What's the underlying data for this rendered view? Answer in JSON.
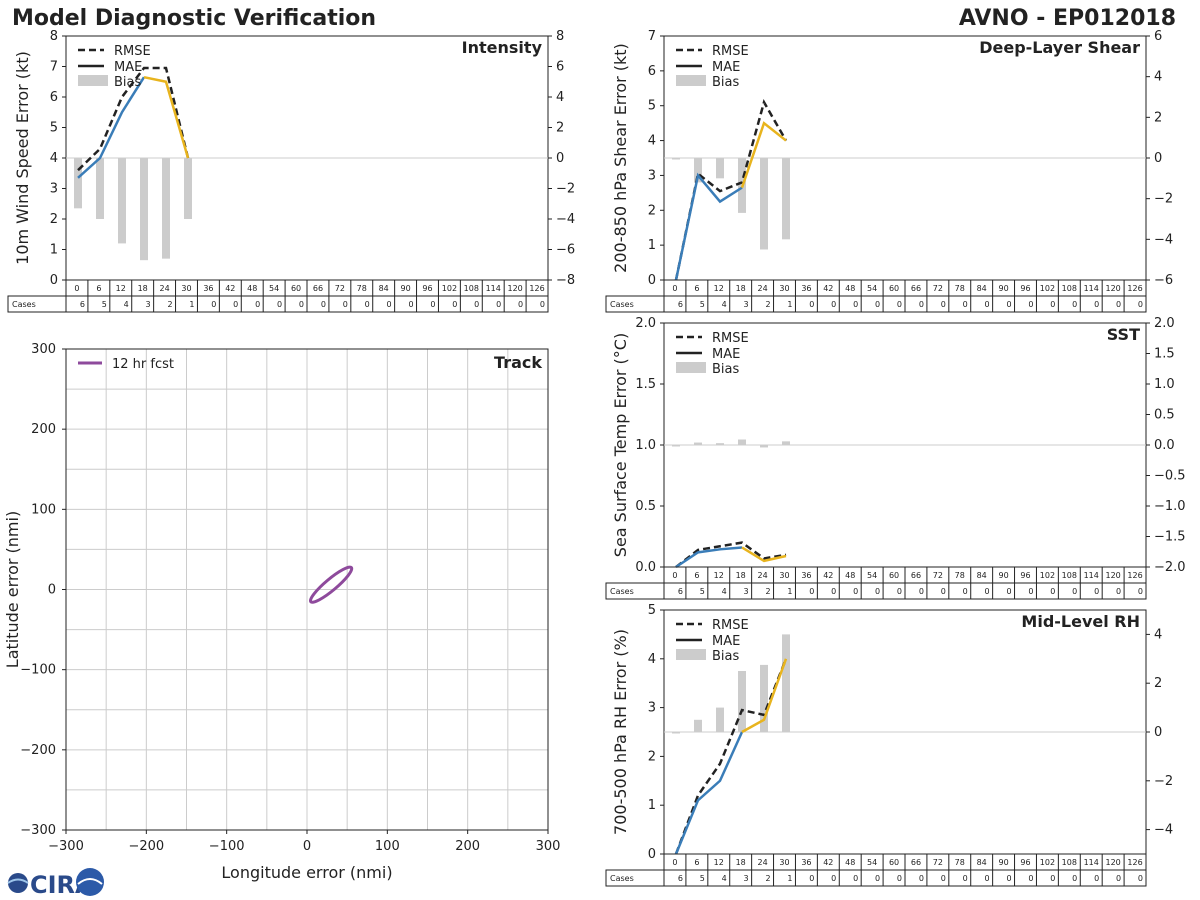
{
  "header": {
    "title": "Model Diagnostic Verification",
    "storm_id": "AVNO - EP012018"
  },
  "colors": {
    "mae_early": "#3a7db8",
    "mae_late": "#e8b41e",
    "rmse": "#222222",
    "bias": "#cccccc",
    "track": "#8e4a9c",
    "grid": "#cccccc"
  },
  "lead_times": [
    "0",
    "6",
    "12",
    "18",
    "24",
    "30",
    "36",
    "42",
    "48",
    "54",
    "60",
    "66",
    "72",
    "78",
    "84",
    "90",
    "96",
    "102",
    "108",
    "114",
    "120",
    "126"
  ],
  "cases_label": "Cases",
  "cases": [
    "6",
    "5",
    "4",
    "3",
    "2",
    "1",
    "0",
    "0",
    "0",
    "0",
    "0",
    "0",
    "0",
    "0",
    "0",
    "0",
    "0",
    "0",
    "0",
    "0",
    "0",
    "0"
  ],
  "legend": {
    "rmse": "RMSE",
    "mae": "MAE",
    "bias": "Bias"
  },
  "chart_data": [
    {
      "id": "intensity",
      "type": "line",
      "title": "Intensity",
      "ylabel": "10m Wind Speed Error (kt)",
      "ylim": [
        0,
        8
      ],
      "yticks": [
        "0",
        "1",
        "2",
        "3",
        "4",
        "5",
        "6",
        "7",
        "8"
      ],
      "y2lim": [
        -8,
        8
      ],
      "y2ticks": [
        "−8",
        "−6",
        "−4",
        "−2",
        "0",
        "2",
        "4",
        "6",
        "8"
      ],
      "x": [
        0,
        6,
        12,
        18,
        24,
        30
      ],
      "mae": [
        3.35,
        4.0,
        5.5,
        6.65,
        6.5,
        4.0
      ],
      "rmse": [
        3.6,
        4.3,
        6.0,
        6.95,
        6.95,
        4.0
      ],
      "bias": [
        -3.3,
        -4.0,
        -5.6,
        -6.7,
        -6.6,
        -4.0
      ]
    },
    {
      "id": "shear",
      "type": "line",
      "title": "Deep-Layer Shear",
      "ylabel": "200-850 hPa Shear Error (kt)",
      "ylim": [
        0,
        7
      ],
      "yticks": [
        "0",
        "1",
        "2",
        "3",
        "4",
        "5",
        "6",
        "7"
      ],
      "y2lim": [
        -6,
        6
      ],
      "y2ticks": [
        "−6",
        "−4",
        "−2",
        "0",
        "2",
        "4",
        "6"
      ],
      "x": [
        0,
        6,
        12,
        18,
        24,
        30
      ],
      "mae": [
        0.0,
        3.0,
        2.25,
        2.65,
        4.5,
        4.0
      ],
      "rmse": [
        0.0,
        3.05,
        2.55,
        2.8,
        5.1,
        4.0
      ],
      "bias": [
        0.0,
        -1.2,
        -1.0,
        -2.7,
        -4.5,
        -4.0
      ]
    },
    {
      "id": "sst",
      "type": "line",
      "title": "SST",
      "ylabel": "Sea Surface Temp Error (°C)",
      "ylim": [
        0,
        2.0
      ],
      "yticks": [
        "0.0",
        "0.5",
        "1.0",
        "1.5",
        "2.0"
      ],
      "y2lim": [
        -2.0,
        2.0
      ],
      "y2ticks": [
        "−2.0",
        "−1.5",
        "−1.0",
        "−0.5",
        "0.0",
        "0.5",
        "1.0",
        "1.5",
        "2.0"
      ],
      "x": [
        0,
        6,
        12,
        18,
        24,
        30
      ],
      "mae": [
        0.0,
        0.12,
        0.145,
        0.16,
        0.05,
        0.09
      ],
      "rmse": [
        0.0,
        0.14,
        0.17,
        0.2,
        0.07,
        0.1
      ],
      "bias": [
        0.0,
        0.04,
        0.03,
        0.09,
        -0.04,
        0.06
      ]
    },
    {
      "id": "rh",
      "type": "line",
      "title": "Mid-Level RH",
      "ylabel": "700-500 hPa RH Error (%)",
      "ylim": [
        0,
        5
      ],
      "yticks": [
        "0",
        "1",
        "2",
        "3",
        "4",
        "5"
      ],
      "y2lim": [
        -5,
        5
      ],
      "y2ticks": [
        "−4",
        "−2",
        "0",
        "2",
        "4"
      ],
      "y2tickvals": [
        -4,
        -2,
        0,
        2,
        4
      ],
      "x": [
        0,
        6,
        12,
        18,
        24,
        30
      ],
      "mae": [
        0.0,
        1.1,
        1.5,
        2.5,
        2.75,
        4.0
      ],
      "rmse": [
        0.0,
        1.2,
        1.85,
        2.95,
        2.85,
        4.0
      ],
      "bias": [
        0.0,
        0.5,
        1.0,
        2.5,
        2.75,
        4.0
      ]
    },
    {
      "id": "track",
      "type": "scatter",
      "title": "Track",
      "xlabel": "Longitude error (nmi)",
      "ylabel": "Latitude error (nmi)",
      "xlim": [
        -300,
        300
      ],
      "ylim": [
        -300,
        300
      ],
      "xticks": [
        "−300",
        "−200",
        "−100",
        "0",
        "100",
        "200",
        "300"
      ],
      "yticks": [
        "−300",
        "−200",
        "−100",
        "0",
        "100",
        "200",
        "300"
      ],
      "legend": "12 hr fcst",
      "ellipse": {
        "center_lon": 30,
        "center_lat": 6,
        "semi_major": 33,
        "semi_minor": 7,
        "angle_deg": 40
      }
    }
  ]
}
